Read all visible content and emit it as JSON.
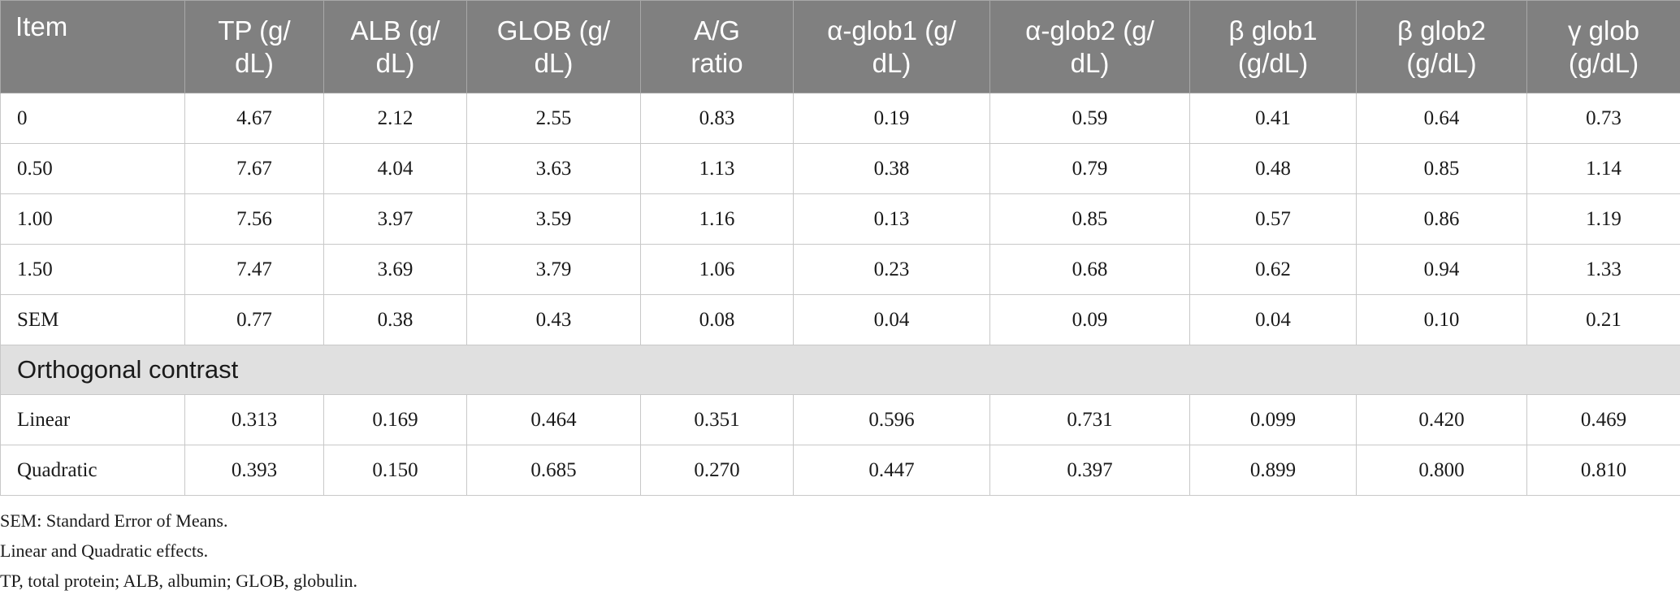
{
  "table": {
    "headers": [
      "Item",
      "TP (g/\ndL)",
      "ALB (g/\ndL)",
      "GLOB (g/\ndL)",
      "A/G\nratio",
      "α-glob1 (g/\ndL)",
      "α-glob2 (g/\ndL)",
      "β glob1\n(g/dL)",
      "β glob2\n(g/dL)",
      "γ glob\n(g/dL)"
    ],
    "rows": [
      [
        "0",
        "4.67",
        "2.12",
        "2.55",
        "0.83",
        "0.19",
        "0.59",
        "0.41",
        "0.64",
        "0.73"
      ],
      [
        "0.50",
        "7.67",
        "4.04",
        "3.63",
        "1.13",
        "0.38",
        "0.79",
        "0.48",
        "0.85",
        "1.14"
      ],
      [
        "1.00",
        "7.56",
        "3.97",
        "3.59",
        "1.16",
        "0.13",
        "0.85",
        "0.57",
        "0.86",
        "1.19"
      ],
      [
        "1.50",
        "7.47",
        "3.69",
        "3.79",
        "1.06",
        "0.23",
        "0.68",
        "0.62",
        "0.94",
        "1.33"
      ],
      [
        "SEM",
        "0.77",
        "0.38",
        "0.43",
        "0.08",
        "0.04",
        "0.09",
        "0.04",
        "0.10",
        "0.21"
      ]
    ],
    "section_label": "Orthogonal contrast",
    "contrast_rows": [
      [
        "Linear",
        "0.313",
        "0.169",
        "0.464",
        "0.351",
        "0.596",
        "0.731",
        "0.099",
        "0.420",
        "0.469"
      ],
      [
        "Quadratic",
        "0.393",
        "0.150",
        "0.685",
        "0.270",
        "0.447",
        "0.397",
        "0.899",
        "0.800",
        "0.810"
      ]
    ]
  },
  "footnotes": [
    "SEM: Standard Error of Means.",
    "Linear and Quadratic effects.",
    "TP, total protein; ALB, albumin; GLOB, globulin."
  ]
}
